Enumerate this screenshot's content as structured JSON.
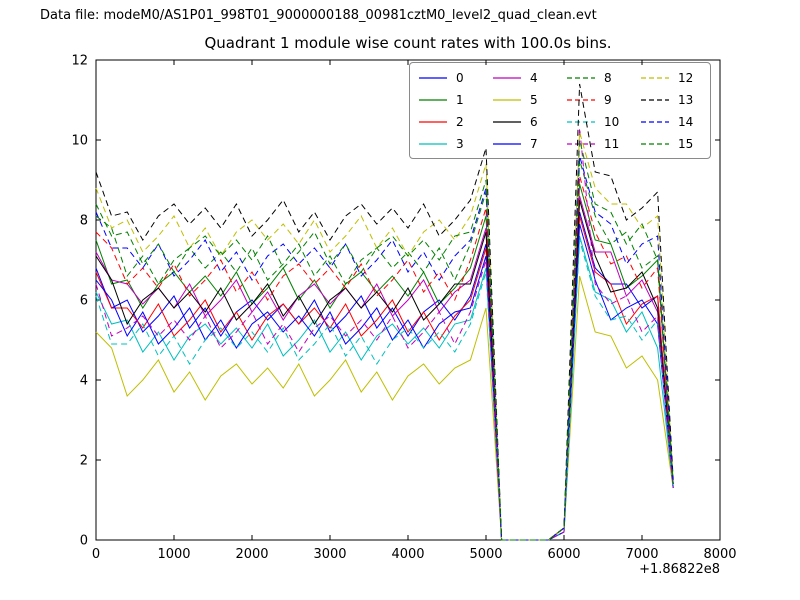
{
  "figure": {
    "data_file_label": "Data file: modeM0/AS1P01_998T01_9000000188_00981cztM0_level2_quad_clean.evt"
  },
  "chart_data": {
    "type": "line",
    "title": "Quadrant 1 module wise count rates with 100.0s bins.",
    "xlabel": "",
    "ylabel": "",
    "xlim": [
      0,
      8000
    ],
    "ylim": [
      0,
      12
    ],
    "x_ticks": [
      0,
      1000,
      2000,
      3000,
      4000,
      5000,
      6000,
      7000,
      8000
    ],
    "y_ticks": [
      0,
      2,
      4,
      6,
      8,
      10,
      12
    ],
    "x_offset_label": "+1.86822e8",
    "grid": false,
    "legend": {
      "location": "upper center-right",
      "columns": 4,
      "entries": [
        "0",
        "1",
        "2",
        "3",
        "4",
        "5",
        "6",
        "7",
        "8",
        "9",
        "10",
        "11",
        "12",
        "13",
        "14",
        "15"
      ]
    },
    "x": [
      0,
      200,
      400,
      600,
      800,
      1000,
      1200,
      1400,
      1600,
      1800,
      2000,
      2200,
      2400,
      2600,
      2800,
      3000,
      3200,
      3400,
      3600,
      3800,
      4000,
      4200,
      4400,
      4600,
      4800,
      5000,
      5200,
      5400,
      5600,
      5800,
      6000,
      6200,
      6400,
      6600,
      6800,
      7000,
      7200,
      7400
    ],
    "series": [
      {
        "name": "0",
        "color": "#0000ff",
        "dash": "solid",
        "values": [
          6.8,
          5.8,
          6.0,
          5.2,
          5.6,
          6.1,
          5.3,
          5.8,
          5.1,
          5.7,
          6.0,
          5.5,
          5.9,
          5.4,
          6.0,
          5.2,
          5.6,
          6.1,
          5.3,
          5.8,
          5.1,
          5.7,
          6.0,
          5.5,
          6.1,
          7.4,
          0,
          0,
          0,
          0,
          0.3,
          8.2,
          6.8,
          6.4,
          6.4,
          5.8,
          6.1,
          1.4
        ]
      },
      {
        "name": "1",
        "color": "#008000",
        "dash": "solid",
        "values": [
          7.5,
          6.4,
          6.5,
          5.8,
          6.4,
          6.7,
          6.2,
          6.6,
          6.1,
          6.7,
          5.9,
          6.3,
          6.8,
          6.0,
          6.5,
          5.8,
          6.4,
          6.7,
          6.2,
          6.6,
          6.1,
          6.7,
          5.9,
          6.3,
          6.8,
          8.1,
          0,
          0,
          0,
          0,
          0.3,
          8.9,
          7.5,
          7.4,
          6.3,
          6.6,
          7.0,
          1.4
        ]
      },
      {
        "name": "2",
        "color": "#ff0000",
        "dash": "solid",
        "values": [
          6.7,
          5.8,
          5.8,
          5.3,
          5.9,
          5.1,
          5.5,
          6.0,
          5.2,
          5.7,
          5.0,
          5.6,
          5.9,
          5.4,
          5.8,
          5.3,
          5.9,
          5.1,
          5.5,
          6.0,
          5.2,
          5.7,
          5.0,
          5.6,
          6.0,
          7.3,
          0,
          0,
          0,
          0,
          0.3,
          8.1,
          6.7,
          6.4,
          5.4,
          5.9,
          6.1,
          1.3
        ]
      },
      {
        "name": "3",
        "color": "#00bfbf",
        "dash": "solid",
        "values": [
          6.2,
          5.4,
          5.5,
          4.7,
          5.2,
          4.5,
          5.1,
          5.4,
          4.9,
          5.3,
          4.8,
          5.4,
          4.6,
          5.0,
          5.5,
          4.7,
          5.2,
          4.5,
          5.1,
          5.4,
          4.9,
          5.3,
          4.8,
          5.4,
          5.5,
          6.8,
          0,
          0,
          0,
          0,
          0.2,
          7.6,
          6.2,
          6.0,
          5.2,
          5.7,
          4.8,
          1.3
        ]
      },
      {
        "name": "4",
        "color": "#bf00bf",
        "dash": "solid",
        "values": [
          7.2,
          6.5,
          6.4,
          5.9,
          6.3,
          5.8,
          6.4,
          5.6,
          6.0,
          6.5,
          5.7,
          6.2,
          5.5,
          6.1,
          6.4,
          5.9,
          6.3,
          5.8,
          6.4,
          5.6,
          6.0,
          6.5,
          5.7,
          6.2,
          6.5,
          7.8,
          0,
          0,
          0,
          0,
          0.3,
          8.6,
          7.2,
          7.2,
          6.1,
          6.5,
          5.7,
          1.4
        ]
      },
      {
        "name": "5",
        "color": "#bfbf00",
        "dash": "solid",
        "values": [
          5.2,
          4.8,
          3.6,
          4.0,
          4.5,
          3.7,
          4.2,
          3.5,
          4.1,
          4.4,
          3.9,
          4.3,
          3.8,
          4.4,
          3.6,
          4.0,
          4.5,
          3.7,
          4.2,
          3.5,
          4.1,
          4.4,
          3.9,
          4.3,
          4.5,
          5.8,
          0,
          0,
          0,
          0,
          0.2,
          6.6,
          5.2,
          5.1,
          4.3,
          4.6,
          4.0,
          1.3
        ]
      },
      {
        "name": "6",
        "color": "#000000",
        "dash": "solid",
        "values": [
          7.1,
          6.5,
          5.4,
          6.0,
          6.3,
          5.8,
          6.2,
          5.7,
          6.3,
          5.5,
          5.9,
          6.4,
          5.6,
          6.1,
          5.4,
          6.0,
          6.3,
          5.8,
          6.2,
          5.7,
          6.3,
          5.5,
          5.9,
          6.4,
          6.4,
          7.7,
          0,
          0,
          0,
          0,
          0.3,
          8.5,
          7.1,
          6.2,
          6.3,
          6.7,
          5.8,
          1.4
        ]
      },
      {
        "name": "7",
        "color": "#0000ff",
        "dash": "solid",
        "values": [
          6.5,
          6.0,
          5.1,
          5.7,
          4.9,
          5.3,
          5.8,
          5.0,
          5.5,
          4.8,
          5.4,
          5.7,
          5.2,
          5.6,
          5.1,
          5.7,
          4.9,
          5.3,
          5.8,
          5.0,
          5.5,
          4.8,
          5.4,
          5.7,
          5.8,
          7.1,
          0,
          0,
          0,
          0,
          0.2,
          7.9,
          6.5,
          5.5,
          5.8,
          6.0,
          5.4,
          1.3
        ]
      },
      {
        "name": "8",
        "color": "#008000",
        "dash": "dashed",
        "values": [
          8.1,
          7.8,
          6.6,
          7.1,
          6.4,
          7.0,
          7.3,
          6.8,
          7.2,
          6.7,
          7.3,
          6.5,
          6.9,
          7.4,
          6.6,
          7.1,
          6.4,
          7.0,
          7.3,
          6.8,
          7.2,
          6.7,
          7.3,
          6.5,
          7.4,
          8.7,
          0,
          0,
          0,
          0,
          0.3,
          9.5,
          8.1,
          7.4,
          7.7,
          6.8,
          7.1,
          1.4
        ]
      },
      {
        "name": "9",
        "color": "#ff0000",
        "dash": "dashed",
        "values": [
          7.7,
          7.3,
          6.4,
          6.8,
          6.3,
          6.9,
          6.1,
          6.5,
          7.0,
          6.2,
          6.7,
          6.0,
          6.6,
          6.9,
          6.4,
          6.8,
          6.3,
          6.9,
          6.1,
          6.5,
          7.0,
          6.2,
          6.7,
          6.0,
          7.0,
          8.3,
          0,
          0,
          0,
          0,
          0.3,
          9.1,
          7.7,
          6.9,
          7.1,
          6.3,
          6.8,
          1.4
        ]
      },
      {
        "name": "10",
        "color": "#00bfbf",
        "dash": "dashed",
        "values": [
          6.1,
          4.9,
          4.9,
          5.4,
          4.6,
          5.1,
          4.4,
          5.0,
          5.3,
          4.8,
          5.2,
          4.7,
          5.3,
          4.5,
          4.9,
          5.4,
          4.6,
          5.1,
          4.4,
          5.0,
          5.3,
          4.8,
          5.2,
          4.7,
          5.4,
          6.7,
          0,
          0,
          0,
          0,
          0.2,
          7.5,
          6.1,
          5.5,
          5.6,
          5.0,
          5.5,
          1.3
        ]
      },
      {
        "name": "11",
        "color": "#bf00bf",
        "dash": "dashed",
        "values": [
          6.4,
          5.1,
          5.3,
          5.6,
          5.1,
          5.5,
          5.0,
          5.6,
          4.8,
          5.2,
          5.7,
          4.9,
          5.4,
          4.7,
          5.3,
          5.6,
          5.1,
          5.5,
          5.0,
          5.6,
          4.8,
          5.2,
          5.7,
          4.9,
          5.7,
          7.0,
          0,
          0,
          0,
          0,
          0.2,
          10.3,
          6.4,
          5.9,
          6.1,
          5.2,
          5.6,
          1.3
        ]
      },
      {
        "name": "12",
        "color": "#bfbf00",
        "dash": "dashed",
        "values": [
          8.8,
          7.8,
          8.0,
          7.2,
          7.6,
          8.1,
          7.3,
          7.8,
          7.1,
          7.7,
          8.0,
          7.5,
          7.9,
          7.4,
          8.0,
          7.2,
          7.6,
          8.1,
          7.3,
          7.8,
          7.1,
          7.7,
          8.0,
          7.5,
          8.1,
          9.4,
          0,
          0,
          0,
          0,
          0.3,
          10.2,
          8.8,
          8.4,
          8.4,
          7.8,
          8.1,
          1.5
        ]
      },
      {
        "name": "13",
        "color": "#000000",
        "dash": "dashed",
        "values": [
          9.2,
          8.1,
          8.2,
          7.5,
          8.1,
          8.4,
          7.9,
          8.3,
          7.8,
          8.4,
          7.6,
          8.0,
          8.5,
          7.7,
          8.2,
          7.5,
          8.1,
          8.4,
          7.9,
          8.3,
          7.8,
          8.4,
          7.6,
          8.0,
          8.5,
          9.8,
          0,
          0,
          0,
          0,
          0.3,
          11.4,
          9.2,
          9.1,
          8.0,
          8.3,
          8.7,
          1.5
        ]
      },
      {
        "name": "14",
        "color": "#0000ff",
        "dash": "dashed",
        "values": [
          8.2,
          7.3,
          7.3,
          6.8,
          7.4,
          6.6,
          7.0,
          7.5,
          6.7,
          7.2,
          6.5,
          7.1,
          7.4,
          6.9,
          7.3,
          6.8,
          7.4,
          6.6,
          7.0,
          7.5,
          6.7,
          7.2,
          6.5,
          7.1,
          7.5,
          8.8,
          0,
          0,
          0,
          0,
          0.3,
          9.6,
          8.2,
          7.9,
          6.9,
          7.4,
          7.6,
          1.4
        ]
      },
      {
        "name": "15",
        "color": "#008000",
        "dash": "dashed",
        "values": [
          8.4,
          7.6,
          7.7,
          6.9,
          7.4,
          6.7,
          7.3,
          7.6,
          7.1,
          7.5,
          7.0,
          7.6,
          6.8,
          7.2,
          7.7,
          6.9,
          7.4,
          6.7,
          7.3,
          7.6,
          7.1,
          7.5,
          7.0,
          7.6,
          7.7,
          9.0,
          0,
          0,
          0,
          0,
          0.3,
          10.0,
          8.4,
          8.2,
          7.4,
          7.9,
          7.0,
          1.4
        ]
      }
    ]
  }
}
